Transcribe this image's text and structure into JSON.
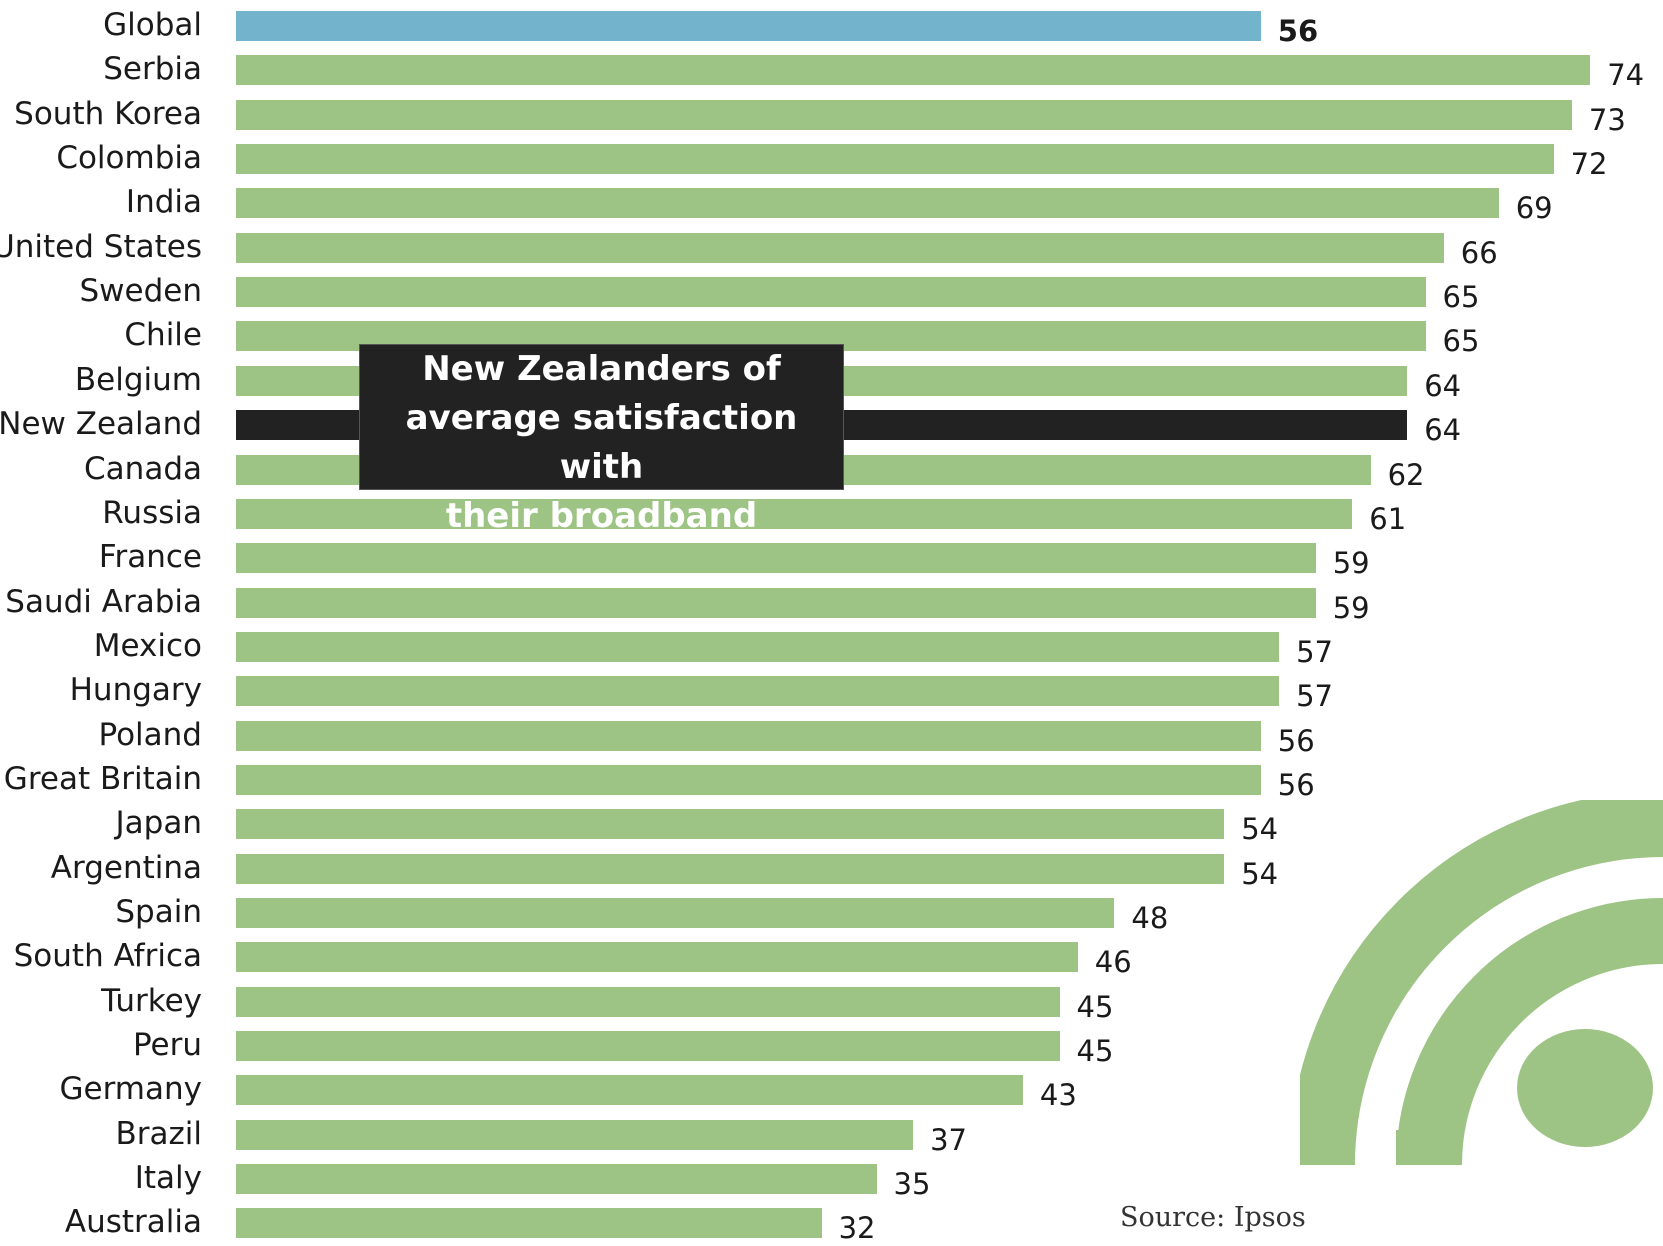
{
  "chart_data": {
    "type": "bar",
    "orientation": "horizontal",
    "categories": [
      "Global",
      "Serbia",
      "South Korea",
      "Colombia",
      "India",
      "United States",
      "Sweden",
      "Chile",
      "Belgium",
      "New Zealand",
      "Canada",
      "Russia",
      "France",
      "Saudi Arabia",
      "Mexico",
      "Hungary",
      "Poland",
      "Great Britain",
      "Japan",
      "Argentina",
      "Spain",
      "South Africa",
      "Turkey",
      "Peru",
      "Germany",
      "Brazil",
      "Italy",
      "Australia"
    ],
    "values": [
      56,
      74,
      73,
      72,
      69,
      66,
      65,
      65,
      64,
      64,
      62,
      61,
      59,
      59,
      57,
      57,
      56,
      56,
      54,
      54,
      48,
      46,
      45,
      45,
      43,
      37,
      35,
      32
    ],
    "highlight": {
      "Global": "#74b3cc",
      "New Zealand": "#222222"
    },
    "bar_color": "#9dc484",
    "annotation": [
      "New Zealanders  of",
      "average satisfaction with",
      "their broadband"
    ],
    "source": "Source: Ipsos",
    "legend": "none",
    "grid": false
  },
  "decoration": {
    "icon": "wifi-icon",
    "color": "#9dc484"
  }
}
